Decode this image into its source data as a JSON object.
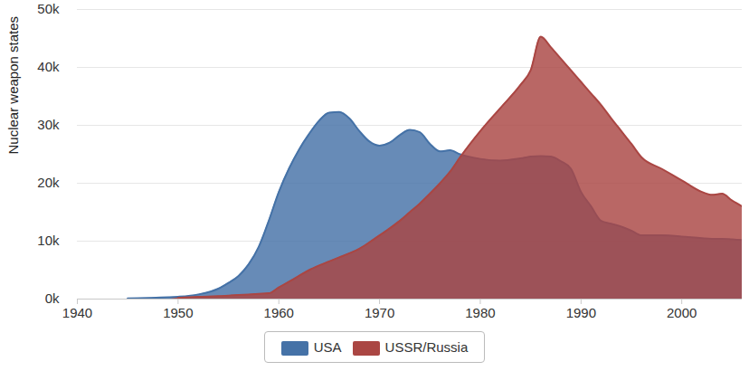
{
  "chart_data": {
    "type": "area",
    "y_label": "Nuclear weapon states",
    "x": [
      1945,
      1949,
      1950,
      1952,
      1954,
      1955,
      1956,
      1957,
      1958,
      1959,
      1960,
      1961,
      1962,
      1963,
      1964,
      1965,
      1966,
      1967,
      1968,
      1969,
      1970,
      1971,
      1972,
      1973,
      1974,
      1975,
      1976,
      1977,
      1978,
      1980,
      1982,
      1984,
      1985,
      1986,
      1987,
      1988,
      1989,
      1990,
      1991,
      1992,
      1993,
      1994,
      1995,
      1996,
      1998,
      2000,
      2002,
      2003,
      2004,
      2005,
      2006
    ],
    "series": [
      {
        "name": "USA",
        "color": "#4572a7",
        "values": [
          100,
          300,
          400,
          800,
          1800,
          2800,
          4000,
          6000,
          9000,
          13500,
          18500,
          22500,
          25800,
          28500,
          30800,
          32200,
          32300,
          31200,
          29000,
          27200,
          26500,
          27000,
          28300,
          29200,
          28800,
          26800,
          25500,
          25700,
          25000,
          24200,
          23900,
          24300,
          24600,
          24700,
          24600,
          23800,
          22500,
          18500,
          16000,
          13500,
          13000,
          12500,
          11800,
          11000,
          11000,
          10800,
          10500,
          10400,
          10400,
          10300,
          10200
        ]
      },
      {
        "name": "USSR/Russia",
        "color": "#aa4643",
        "values": [
          null,
          null,
          200,
          400,
          500,
          600,
          700,
          800,
          900,
          1000,
          2000,
          3000,
          4000,
          5000,
          5800,
          6500,
          7200,
          7900,
          8700,
          9800,
          11000,
          12200,
          13500,
          15000,
          16500,
          18200,
          20000,
          22000,
          24500,
          29000,
          33000,
          37000,
          39500,
          45300,
          43500,
          41500,
          39500,
          37500,
          35500,
          33500,
          31200,
          29000,
          26800,
          24500,
          22500,
          20500,
          18500,
          18000,
          18200,
          17000,
          16000
        ]
      }
    ],
    "xlim": [
      1940,
      2006
    ],
    "xticks": [
      1940,
      1950,
      1960,
      1970,
      1980,
      1990,
      2000
    ],
    "ylim": [
      0,
      50000
    ],
    "yticks": [
      {
        "value": 0,
        "label": "0k"
      },
      {
        "value": 10000,
        "label": "10k"
      },
      {
        "value": 20000,
        "label": "20k"
      },
      {
        "value": 30000,
        "label": "30k"
      },
      {
        "value": 40000,
        "label": "40k"
      },
      {
        "value": 50000,
        "label": "50k"
      }
    ],
    "grid": true,
    "legend": "bottom"
  }
}
